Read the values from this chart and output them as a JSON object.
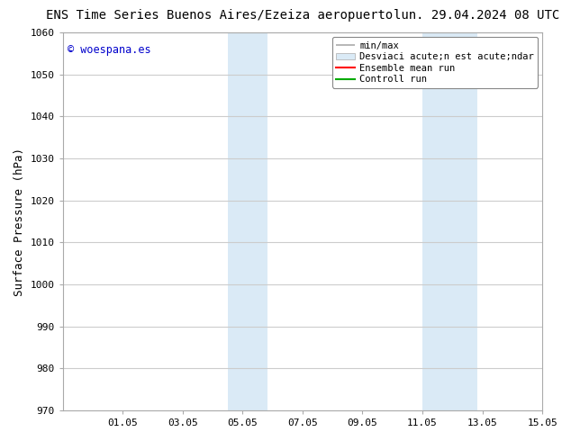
{
  "title_left": "ENS Time Series Buenos Aires/Ezeiza aeropuerto",
  "title_right": "lun. 29.04.2024 08 UTC",
  "ylabel": "Surface Pressure (hPa)",
  "ylim": [
    970,
    1060
  ],
  "yticks": [
    970,
    980,
    990,
    1000,
    1010,
    1020,
    1030,
    1040,
    1050,
    1060
  ],
  "xtick_labels": [
    "01.05",
    "03.05",
    "05.05",
    "07.05",
    "09.05",
    "11.05",
    "13.05",
    "15.05"
  ],
  "xtick_positions": [
    2,
    4,
    6,
    8,
    10,
    12,
    14,
    16
  ],
  "xlim": [
    0,
    16
  ],
  "shaded_regions": [
    {
      "x_start": 5.5,
      "x_end": 6.83,
      "color": "#daeaf6"
    },
    {
      "x_start": 12.0,
      "x_end": 13.83,
      "color": "#daeaf6"
    }
  ],
  "watermark_text": "© woespana.es",
  "watermark_color": "#0000cc",
  "legend_label_1": "min/max",
  "legend_label_2": "Desviaci acute;n est acute;ndar",
  "legend_label_3": "Ensemble mean run",
  "legend_label_4": "Controll run",
  "legend_color_1": "#aaaaaa",
  "legend_color_2": "#daeaf6",
  "legend_color_3": "#ff0000",
  "legend_color_4": "#00aa00",
  "bg_color": "#ffffff",
  "plot_bg_color": "#ffffff",
  "grid_color": "#cccccc",
  "title_fontsize": 10,
  "axis_label_fontsize": 9,
  "tick_fontsize": 8,
  "legend_fontsize": 7.5
}
